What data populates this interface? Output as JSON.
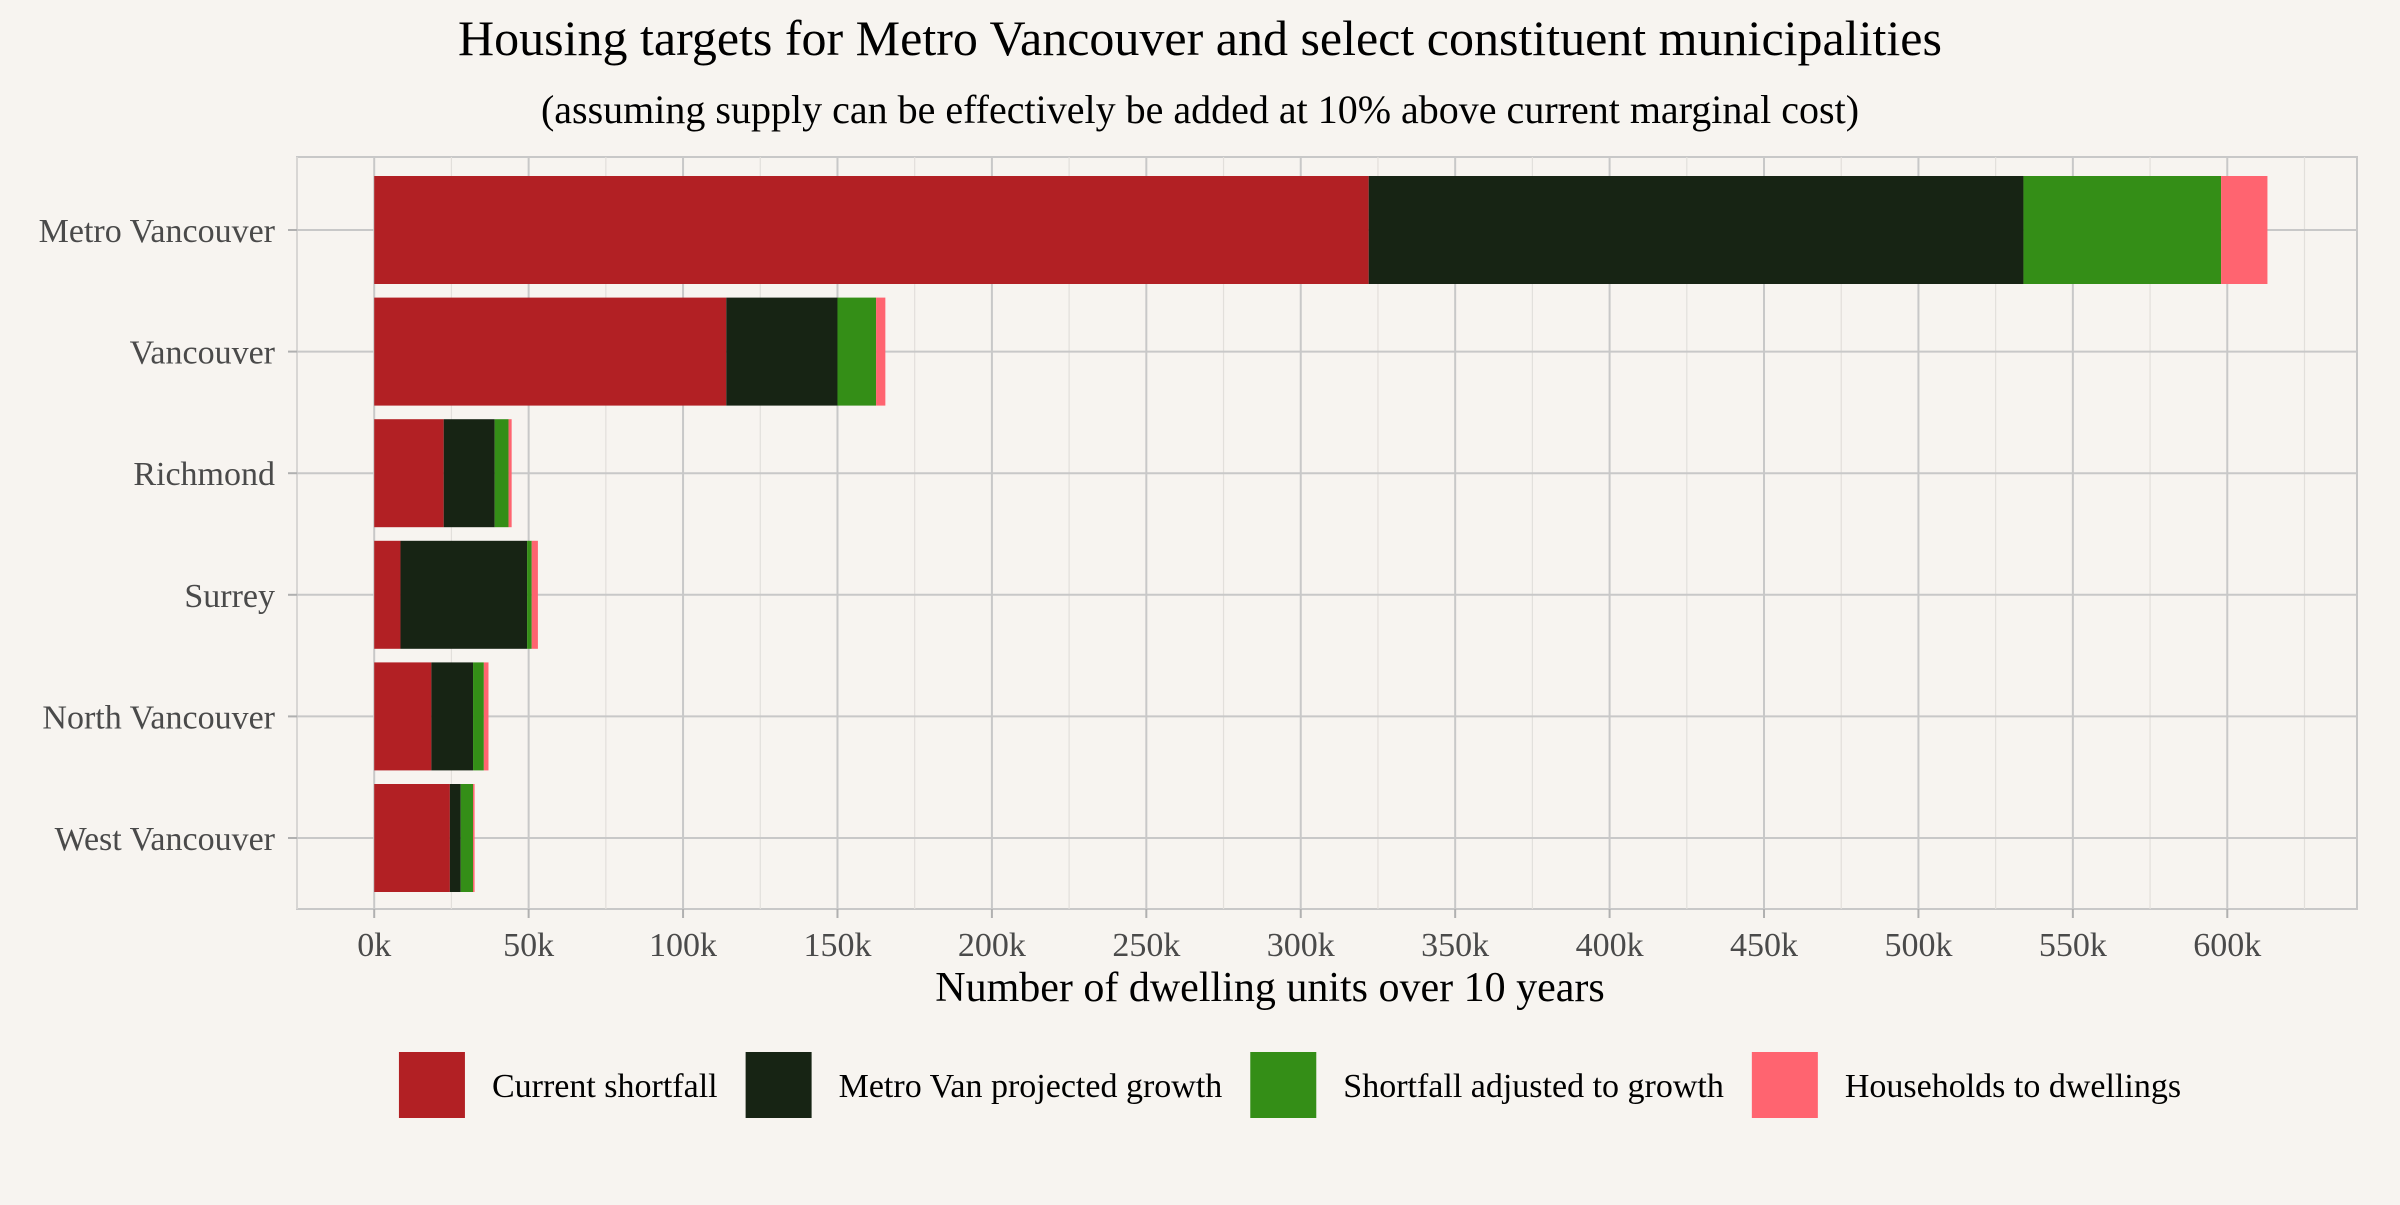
{
  "chart_data": {
    "type": "bar",
    "orientation": "horizontal",
    "stacked": true,
    "title": "Housing targets for Metro Vancouver and select constituent municipalities",
    "subtitle": "(assuming supply can be effectively be added at 10% above current marginal cost)",
    "xlabel": "Number of dwelling units over 10 years",
    "ylabel": "",
    "xlim": [
      -25000,
      642000
    ],
    "x_ticks": [
      0,
      50000,
      100000,
      150000,
      200000,
      250000,
      300000,
      350000,
      400000,
      450000,
      500000,
      550000,
      600000
    ],
    "x_tick_labels": [
      "0k",
      "50k",
      "100k",
      "150k",
      "200k",
      "250k",
      "300k",
      "350k",
      "400k",
      "450k",
      "500k",
      "550k",
      "600k"
    ],
    "categories": [
      "Metro Vancouver",
      "Vancouver",
      "Richmond",
      "Surrey",
      "North Vancouver",
      "West Vancouver"
    ],
    "series": [
      {
        "name": "Current shortfall",
        "color": "#b22024",
        "values": [
          322000,
          114000,
          22500,
          8500,
          18500,
          24500
        ]
      },
      {
        "name": "Metro Van projected growth",
        "color": "#172414",
        "values": [
          212000,
          36000,
          16500,
          41000,
          13500,
          3500
        ]
      },
      {
        "name": "Shortfall adjusted to growth",
        "color": "#348e17",
        "values": [
          64000,
          12500,
          4500,
          1500,
          3500,
          4000
        ]
      },
      {
        "name": "Households to dwellings",
        "color": "#ff6470",
        "values": [
          15000,
          3000,
          1000,
          2000,
          1500,
          500
        ]
      }
    ],
    "grid": true,
    "legend_position": "bottom"
  }
}
